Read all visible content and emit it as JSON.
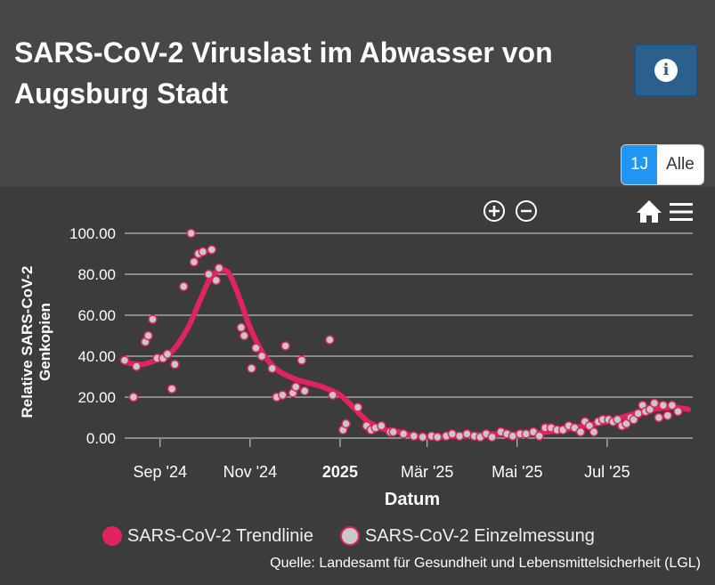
{
  "header": {
    "title": "SARS-CoV-2 Viruslast im Abwasser von Augsburg Stadt",
    "info_icon": "info-icon"
  },
  "range_selector": {
    "options": [
      "1J",
      "Alle"
    ],
    "selected": "1J"
  },
  "toolbar": {
    "zoom_in_icon": "zoom-in-icon",
    "zoom_out_icon": "zoom-out-icon",
    "home_icon": "home-icon",
    "menu_icon": "menu-icon"
  },
  "legend": {
    "trend_label": "SARS-CoV-2 Trendlinie",
    "points_label": "SARS-CoV-2 Einzelmessung"
  },
  "source": "Quelle: Landesamt für Gesundheit und Lebensmittelsicherheit (LGL)",
  "colors": {
    "trend": "#e0245e",
    "point_fill": "#c8c8c8",
    "point_stroke": "#e0245e",
    "active": "#2196f3"
  },
  "chart_data": {
    "type": "line",
    "title": "",
    "xlabel": "Datum",
    "ylabel": "Relative SARS-CoV-2 Genkopien",
    "ylim": [
      0,
      100
    ],
    "yticks": [
      "0.00",
      "20.00",
      "40.00",
      "60.00",
      "80.00",
      "100.00"
    ],
    "xticks": [
      {
        "date": "2024-09-01",
        "label": "Sep '24",
        "bold": false
      },
      {
        "date": "2024-11-01",
        "label": "Nov '24",
        "bold": false
      },
      {
        "date": "2025-01-01",
        "label": "2025",
        "bold": true
      },
      {
        "date": "2025-03-01",
        "label": "Mär '25",
        "bold": false
      },
      {
        "date": "2025-05-01",
        "label": "Mai '25",
        "bold": false
      },
      {
        "date": "2025-07-01",
        "label": "Jul '25",
        "bold": false
      }
    ],
    "xlim": [
      "2024-08-08",
      "2025-08-28"
    ],
    "grid": true,
    "legend_position": "bottom",
    "series": [
      {
        "name": "SARS-CoV-2 Trendlinie",
        "kind": "line",
        "points": [
          [
            "2024-08-08",
            37
          ],
          [
            "2024-08-20",
            36
          ],
          [
            "2024-09-01",
            39
          ],
          [
            "2024-09-10",
            43
          ],
          [
            "2024-09-20",
            54
          ],
          [
            "2024-09-28",
            67
          ],
          [
            "2024-10-05",
            78
          ],
          [
            "2024-10-12",
            82
          ],
          [
            "2024-10-18",
            80
          ],
          [
            "2024-10-25",
            68
          ],
          [
            "2024-11-01",
            54
          ],
          [
            "2024-11-10",
            41
          ],
          [
            "2024-11-20",
            33
          ],
          [
            "2024-12-01",
            29
          ],
          [
            "2024-12-10",
            27
          ],
          [
            "2024-12-20",
            25
          ],
          [
            "2025-01-01",
            21
          ],
          [
            "2025-01-10",
            15
          ],
          [
            "2025-01-20",
            8
          ],
          [
            "2025-02-01",
            4
          ],
          [
            "2025-02-10",
            3
          ],
          [
            "2025-02-20",
            1
          ],
          [
            "2025-03-01",
            0.5
          ],
          [
            "2025-03-10",
            0.5
          ],
          [
            "2025-03-20",
            1
          ],
          [
            "2025-04-01",
            1.5
          ],
          [
            "2025-04-15",
            2
          ],
          [
            "2025-05-01",
            2
          ],
          [
            "2025-05-15",
            2.5
          ],
          [
            "2025-06-01",
            4
          ],
          [
            "2025-06-15",
            6
          ],
          [
            "2025-07-01",
            8
          ],
          [
            "2025-07-15",
            11
          ],
          [
            "2025-08-01",
            14
          ],
          [
            "2025-08-15",
            15
          ],
          [
            "2025-08-25",
            14
          ]
        ]
      },
      {
        "name": "SARS-CoV-2 Einzelmessung",
        "kind": "scatter",
        "points": [
          [
            "2024-08-08",
            38
          ],
          [
            "2024-08-14",
            20
          ],
          [
            "2024-08-16",
            35
          ],
          [
            "2024-08-22",
            47
          ],
          [
            "2024-08-24",
            50
          ],
          [
            "2024-08-27",
            58
          ],
          [
            "2024-08-30",
            39
          ],
          [
            "2024-09-03",
            39
          ],
          [
            "2024-09-06",
            41
          ],
          [
            "2024-09-09",
            24
          ],
          [
            "2024-09-11",
            36
          ],
          [
            "2024-09-17",
            74
          ],
          [
            "2024-09-22",
            100
          ],
          [
            "2024-09-24",
            86
          ],
          [
            "2024-09-27",
            90
          ],
          [
            "2024-09-30",
            91
          ],
          [
            "2024-10-04",
            80
          ],
          [
            "2024-10-06",
            92
          ],
          [
            "2024-10-09",
            77
          ],
          [
            "2024-10-11",
            83
          ],
          [
            "2024-10-26",
            54
          ],
          [
            "2024-10-28",
            50
          ],
          [
            "2024-11-02",
            34
          ],
          [
            "2024-11-05",
            44
          ],
          [
            "2024-11-09",
            40
          ],
          [
            "2024-11-16",
            34
          ],
          [
            "2024-11-19",
            20
          ],
          [
            "2024-11-23",
            21
          ],
          [
            "2024-11-25",
            45
          ],
          [
            "2024-11-30",
            22
          ],
          [
            "2024-12-02",
            25
          ],
          [
            "2024-12-06",
            38
          ],
          [
            "2024-12-08",
            23
          ],
          [
            "2024-12-25",
            48
          ],
          [
            "2024-12-27",
            21
          ],
          [
            "2025-01-03",
            4
          ],
          [
            "2025-01-05",
            7
          ],
          [
            "2025-01-13",
            15
          ],
          [
            "2025-01-19",
            6
          ],
          [
            "2025-01-22",
            4
          ],
          [
            "2025-01-25",
            5
          ],
          [
            "2025-01-29",
            6
          ],
          [
            "2025-02-04",
            3
          ],
          [
            "2025-02-06",
            3
          ],
          [
            "2025-02-13",
            2
          ],
          [
            "2025-02-20",
            1
          ],
          [
            "2025-02-26",
            0.5
          ],
          [
            "2025-03-04",
            1
          ],
          [
            "2025-03-08",
            0.5
          ],
          [
            "2025-03-14",
            1
          ],
          [
            "2025-03-18",
            2
          ],
          [
            "2025-03-23",
            1
          ],
          [
            "2025-03-28",
            2
          ],
          [
            "2025-04-02",
            1
          ],
          [
            "2025-04-06",
            0.5
          ],
          [
            "2025-04-10",
            2
          ],
          [
            "2025-04-14",
            0.5
          ],
          [
            "2025-04-20",
            3
          ],
          [
            "2025-04-24",
            2
          ],
          [
            "2025-04-28",
            1
          ],
          [
            "2025-05-03",
            2
          ],
          [
            "2025-05-07",
            2
          ],
          [
            "2025-05-12",
            3
          ],
          [
            "2025-05-16",
            1
          ],
          [
            "2025-05-20",
            5
          ],
          [
            "2025-05-24",
            5
          ],
          [
            "2025-05-28",
            4
          ],
          [
            "2025-06-01",
            4
          ],
          [
            "2025-06-05",
            6
          ],
          [
            "2025-06-09",
            5
          ],
          [
            "2025-06-13",
            3
          ],
          [
            "2025-06-16",
            8
          ],
          [
            "2025-06-19",
            6
          ],
          [
            "2025-06-22",
            3
          ],
          [
            "2025-06-25",
            8
          ],
          [
            "2025-06-28",
            9
          ],
          [
            "2025-07-02",
            9
          ],
          [
            "2025-07-05",
            8
          ],
          [
            "2025-07-08",
            9
          ],
          [
            "2025-07-11",
            6
          ],
          [
            "2025-07-14",
            7
          ],
          [
            "2025-07-17",
            10
          ],
          [
            "2025-07-19",
            9
          ],
          [
            "2025-07-22",
            12
          ],
          [
            "2025-07-25",
            16
          ],
          [
            "2025-07-27",
            13
          ],
          [
            "2025-07-30",
            14
          ],
          [
            "2025-08-02",
            17
          ],
          [
            "2025-08-05",
            10
          ],
          [
            "2025-08-08",
            16
          ],
          [
            "2025-08-11",
            11
          ],
          [
            "2025-08-14",
            16
          ],
          [
            "2025-08-18",
            13
          ]
        ]
      }
    ]
  }
}
